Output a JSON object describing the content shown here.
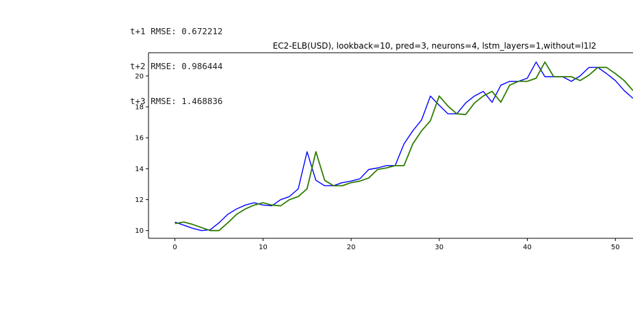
{
  "console_output": [
    "t+1 RMSE: 0.672212",
    "t+2 RMSE: 0.986444",
    "t+3 RMSE: 1.468836"
  ],
  "chart_data": {
    "type": "line",
    "title": "EC2-ELB(USD), lookback=10, pred=3, neurons=4, lstm_layers=1,without=l1l2",
    "xlabel": "",
    "ylabel": "",
    "xlim": [
      -3,
      52
    ],
    "ylim": [
      9.5,
      21.5
    ],
    "xticks": [
      0,
      10,
      20,
      30,
      40,
      50
    ],
    "yticks": [
      10,
      12,
      14,
      16,
      18,
      20
    ],
    "grid": false,
    "legend": "none",
    "series": [
      {
        "color": "#0000ff",
        "x": [
          0,
          1,
          2,
          3,
          4,
          5,
          6,
          7,
          8,
          9,
          10,
          11,
          12,
          13,
          14,
          15,
          16,
          17,
          18,
          19,
          20,
          21,
          22,
          23,
          24,
          25,
          26,
          27,
          28,
          29,
          30,
          31,
          32,
          33,
          34,
          35,
          36,
          37,
          38,
          39,
          40,
          41,
          42,
          43,
          44,
          45,
          46,
          47,
          48,
          49,
          50,
          51,
          52
        ],
        "values": [
          10.55,
          10.35,
          10.15,
          10.0,
          10.05,
          10.5,
          11.05,
          11.4,
          11.65,
          11.8,
          11.65,
          11.6,
          12.0,
          12.2,
          12.7,
          15.1,
          13.25,
          12.9,
          12.9,
          13.1,
          13.2,
          13.35,
          13.95,
          14.05,
          14.2,
          14.2,
          15.6,
          16.45,
          17.15,
          18.7,
          18.1,
          17.55,
          17.55,
          18.25,
          18.7,
          19.0,
          18.3,
          19.4,
          19.65,
          19.65,
          19.85,
          20.9,
          19.95,
          19.95,
          19.95,
          19.65,
          20.0,
          20.55,
          20.55,
          20.15,
          19.7,
          19.05,
          18.55
        ]
      },
      {
        "color": "#2e7d00",
        "x": [
          0,
          1,
          2,
          3,
          4,
          5,
          6,
          7,
          8,
          9,
          10,
          11,
          12,
          13,
          14,
          15,
          16,
          17,
          18,
          19,
          20,
          21,
          22,
          23,
          24,
          25,
          26,
          27,
          28,
          29,
          30,
          31,
          32,
          33,
          34,
          35,
          36,
          37,
          38,
          39,
          40,
          41,
          42,
          43,
          44,
          45,
          46,
          47,
          48,
          49,
          50,
          51,
          52
        ],
        "values": [
          10.45,
          10.55,
          10.4,
          10.2,
          10.0,
          10.0,
          10.5,
          11.05,
          11.4,
          11.65,
          11.8,
          11.65,
          11.6,
          12.0,
          12.2,
          12.7,
          15.1,
          13.25,
          12.9,
          12.9,
          13.1,
          13.2,
          13.4,
          13.95,
          14.05,
          14.2,
          14.2,
          15.6,
          16.45,
          17.1,
          18.7,
          18.05,
          17.55,
          17.5,
          18.25,
          18.7,
          19.0,
          18.3,
          19.4,
          19.65,
          19.65,
          19.85,
          20.9,
          19.95,
          19.95,
          19.95,
          19.7,
          20.05,
          20.55,
          20.55,
          20.15,
          19.7,
          19.05
        ]
      }
    ]
  }
}
